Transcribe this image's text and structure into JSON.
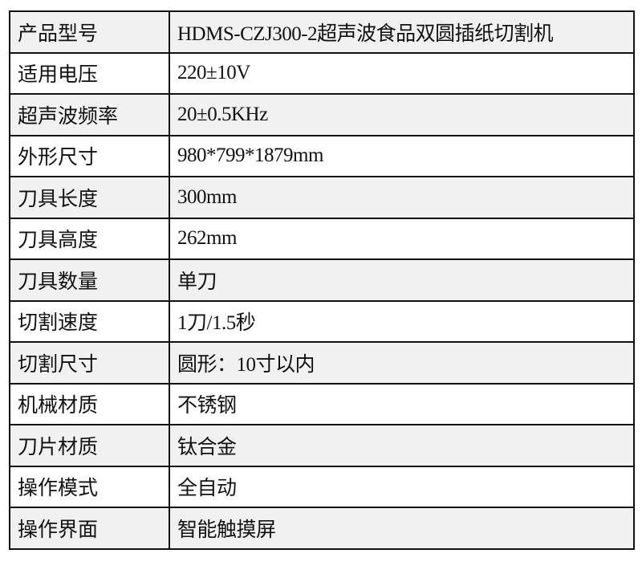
{
  "spec_table": {
    "rows": [
      {
        "label": "产品型号",
        "value": "HDMS-CZJ300-2超声波食品双圆插纸切割机"
      },
      {
        "label": "适用电压",
        "value": "220±10V"
      },
      {
        "label": "超声波频率",
        "value": "20±0.5KHz"
      },
      {
        "label": "外形尺寸",
        "value": "980*799*1879mm"
      },
      {
        "label": "刀具长度",
        "value": "300mm"
      },
      {
        "label": "刀具高度",
        "value": "262mm"
      },
      {
        "label": "刀具数量",
        "value": "单刀"
      },
      {
        "label": "切割速度",
        "value": "1刀/1.5秒"
      },
      {
        "label": "切割尺寸",
        "value": "圆形：10寸以内"
      },
      {
        "label": "机械材质",
        "value": "不锈钢"
      },
      {
        "label": "刀片材质",
        "value": "钛合金"
      },
      {
        "label": "操作模式",
        "value": "全自动"
      },
      {
        "label": "操作界面",
        "value": "智能触摸屏"
      }
    ],
    "colors": {
      "stripe": "#f2f1f1",
      "border": "#111111"
    }
  }
}
